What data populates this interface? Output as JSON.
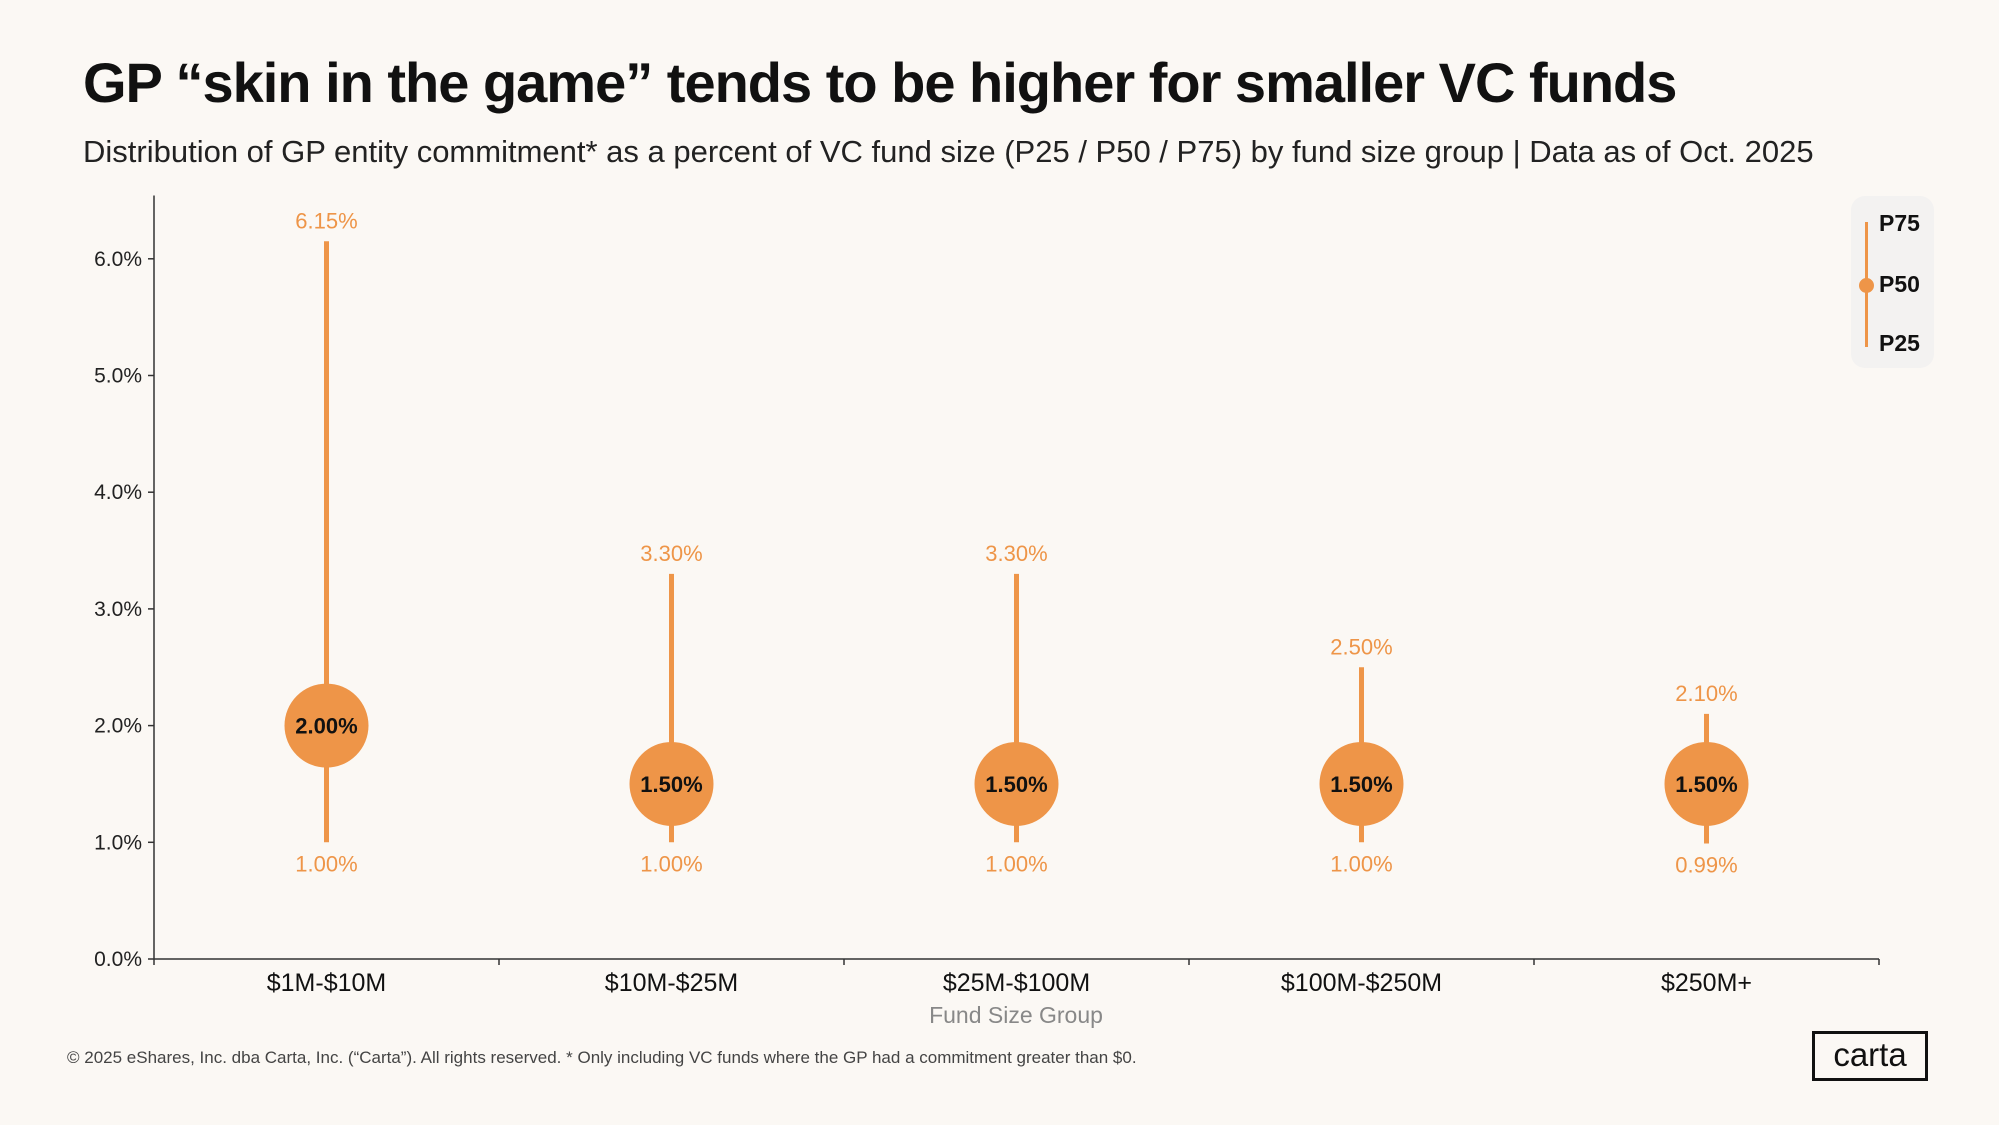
{
  "title": "GP “skin in the game” tends to be higher for smaller VC funds",
  "subtitle": "Distribution of GP entity commitment* as a percent of VC fund size (P25 / P50 / P75) by fund size group | Data as of Oct. 2025",
  "footer": "© 2025 eShares, Inc. dba Carta, Inc. (“Carta”). All rights reserved.  * Only including VC funds where the GP had a commitment greater than $0.",
  "logo": "carta",
  "colors": {
    "accent": "#ee9548",
    "background": "#fbf8f4"
  },
  "legend": {
    "p75": "P75",
    "p50": "P50",
    "p25": "P25",
    "placement": "top-right"
  },
  "chart_data": {
    "type": "range-dot",
    "xlabel": "Fund Size Group",
    "ylabel": "",
    "ylim": [
      0,
      6.5
    ],
    "yticks": [
      "0.0%",
      "1.0%",
      "2.0%",
      "3.0%",
      "4.0%",
      "5.0%",
      "6.0%"
    ],
    "grid": false,
    "categories": [
      "$1M-$10M",
      "$10M-$25M",
      "$25M-$100M",
      "$100M-$250M",
      "$250M+"
    ],
    "p25": [
      1.0,
      1.0,
      1.0,
      1.0,
      0.99
    ],
    "p50": [
      2.0,
      1.5,
      1.5,
      1.5,
      1.5
    ],
    "p75": [
      6.15,
      3.3,
      3.3,
      2.5,
      2.1
    ],
    "p25_labels": [
      "1.00%",
      "1.00%",
      "1.00%",
      "1.00%",
      "0.99%"
    ],
    "p50_labels": [
      "2.00%",
      "1.50%",
      "1.50%",
      "1.50%",
      "1.50%"
    ],
    "p75_labels": [
      "6.15%",
      "3.30%",
      "3.30%",
      "2.50%",
      "2.10%"
    ]
  }
}
